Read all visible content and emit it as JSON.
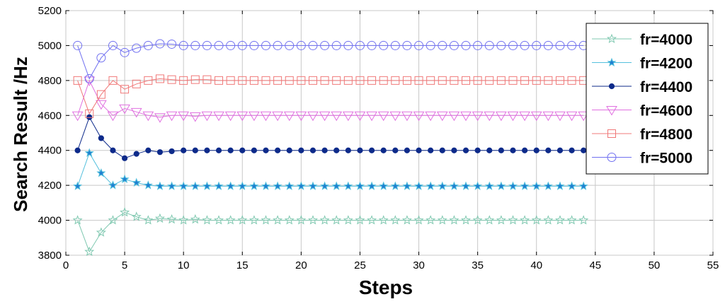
{
  "chart_data": {
    "type": "line",
    "title": "",
    "xlabel": "Steps",
    "ylabel": "Search Result /Hz",
    "xlim": [
      0,
      55
    ],
    "ylim": [
      3800,
      5200
    ],
    "xticks": [
      "0",
      "5",
      "10",
      "15",
      "20",
      "25",
      "30",
      "35",
      "40",
      "45",
      "50",
      "55"
    ],
    "yticks": [
      "3800",
      "4000",
      "4200",
      "4400",
      "4600",
      "4800",
      "5000",
      "5200"
    ],
    "grid": true,
    "legend_position": "top-right",
    "x": [
      1,
      2,
      3,
      4,
      5,
      6,
      7,
      8,
      9,
      10,
      11,
      12,
      13,
      14,
      15,
      16,
      17,
      18,
      19,
      20,
      21,
      22,
      23,
      24,
      25,
      26,
      27,
      28,
      29,
      30,
      31,
      32,
      33,
      34,
      35,
      36,
      37,
      38,
      39,
      40,
      41,
      42,
      43,
      44
    ],
    "series": [
      {
        "name": "fr=4000",
        "color": "#7fc8b0",
        "marker": "star",
        "values": [
          4000,
          3820,
          3930,
          4000,
          4045,
          4020,
          4000,
          4010,
          4005,
          4000,
          4005,
          4000,
          4000,
          4000,
          4000,
          4000,
          4000,
          4000,
          4000,
          4000,
          4000,
          4000,
          4000,
          4000,
          4000,
          4000,
          4000,
          4000,
          4000,
          4000,
          4000,
          4000,
          4000,
          4000,
          4000,
          4000,
          4000,
          4000,
          4000,
          4000,
          4000,
          4000,
          4000,
          4000
        ]
      },
      {
        "name": "fr=4200",
        "color": "#55c0dd",
        "marker": "star-blue",
        "values": [
          4195,
          4385,
          4270,
          4200,
          4235,
          4215,
          4200,
          4195,
          4195,
          4195,
          4195,
          4195,
          4195,
          4195,
          4195,
          4195,
          4195,
          4195,
          4195,
          4195,
          4195,
          4195,
          4195,
          4195,
          4195,
          4195,
          4195,
          4195,
          4195,
          4195,
          4195,
          4195,
          4195,
          4195,
          4195,
          4195,
          4195,
          4195,
          4195,
          4195,
          4195,
          4195,
          4195,
          4195
        ]
      },
      {
        "name": "fr=4400",
        "color": "#0d2a8a",
        "marker": "dot",
        "values": [
          4400,
          4590,
          4470,
          4400,
          4355,
          4380,
          4400,
          4390,
          4395,
          4400,
          4400,
          4400,
          4400,
          4400,
          4400,
          4400,
          4400,
          4400,
          4400,
          4400,
          4400,
          4400,
          4400,
          4400,
          4400,
          4400,
          4400,
          4400,
          4400,
          4400,
          4400,
          4400,
          4400,
          4400,
          4400,
          4400,
          4400,
          4400,
          4400,
          4400,
          4400,
          4400,
          4400,
          4400
        ]
      },
      {
        "name": "fr=4600",
        "color": "#e070e0",
        "marker": "triangle-down",
        "values": [
          4600,
          4800,
          4665,
          4600,
          4640,
          4620,
          4600,
          4590,
          4600,
          4600,
          4595,
          4600,
          4600,
          4600,
          4600,
          4600,
          4600,
          4600,
          4600,
          4600,
          4600,
          4600,
          4600,
          4600,
          4600,
          4600,
          4600,
          4600,
          4600,
          4600,
          4600,
          4600,
          4600,
          4600,
          4600,
          4600,
          4600,
          4600,
          4600,
          4600,
          4600,
          4600,
          4600,
          4600
        ]
      },
      {
        "name": "fr=4800",
        "color": "#f07878",
        "marker": "square",
        "values": [
          4800,
          4610,
          4720,
          4800,
          4750,
          4780,
          4800,
          4810,
          4805,
          4800,
          4805,
          4805,
          4800,
          4800,
          4800,
          4800,
          4800,
          4800,
          4800,
          4800,
          4800,
          4800,
          4800,
          4800,
          4800,
          4800,
          4800,
          4800,
          4800,
          4800,
          4800,
          4800,
          4800,
          4800,
          4800,
          4800,
          4800,
          4800,
          4800,
          4800,
          4800,
          4800,
          4800,
          4800
        ]
      },
      {
        "name": "fr=5000",
        "color": "#7070f0",
        "marker": "circle",
        "values": [
          5000,
          4810,
          4930,
          5000,
          4960,
          4985,
          5000,
          5010,
          5008,
          5000,
          5000,
          5000,
          5000,
          5000,
          5000,
          5000,
          5000,
          5000,
          5000,
          5000,
          5000,
          5000,
          5000,
          5000,
          5000,
          5000,
          5000,
          5000,
          5000,
          5000,
          5000,
          5000,
          5000,
          5000,
          5000,
          5000,
          5000,
          5000,
          5000,
          5000,
          5000,
          5000,
          5000,
          5000
        ]
      }
    ]
  }
}
